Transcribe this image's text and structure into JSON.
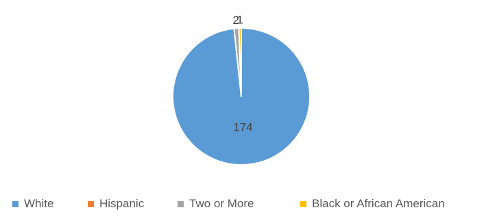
{
  "chart_data": {
    "type": "pie",
    "title": "",
    "categories": [
      "White",
      "Hispanic",
      "Two or More",
      "Black or African American"
    ],
    "values": [
      174,
      0,
      2,
      1
    ],
    "data_labels": [
      "174",
      "",
      "2",
      "1"
    ],
    "colors": [
      "#5B9BD5",
      "#ED7D31",
      "#A5A5A5",
      "#FFC000"
    ],
    "legend_position": "bottom"
  }
}
